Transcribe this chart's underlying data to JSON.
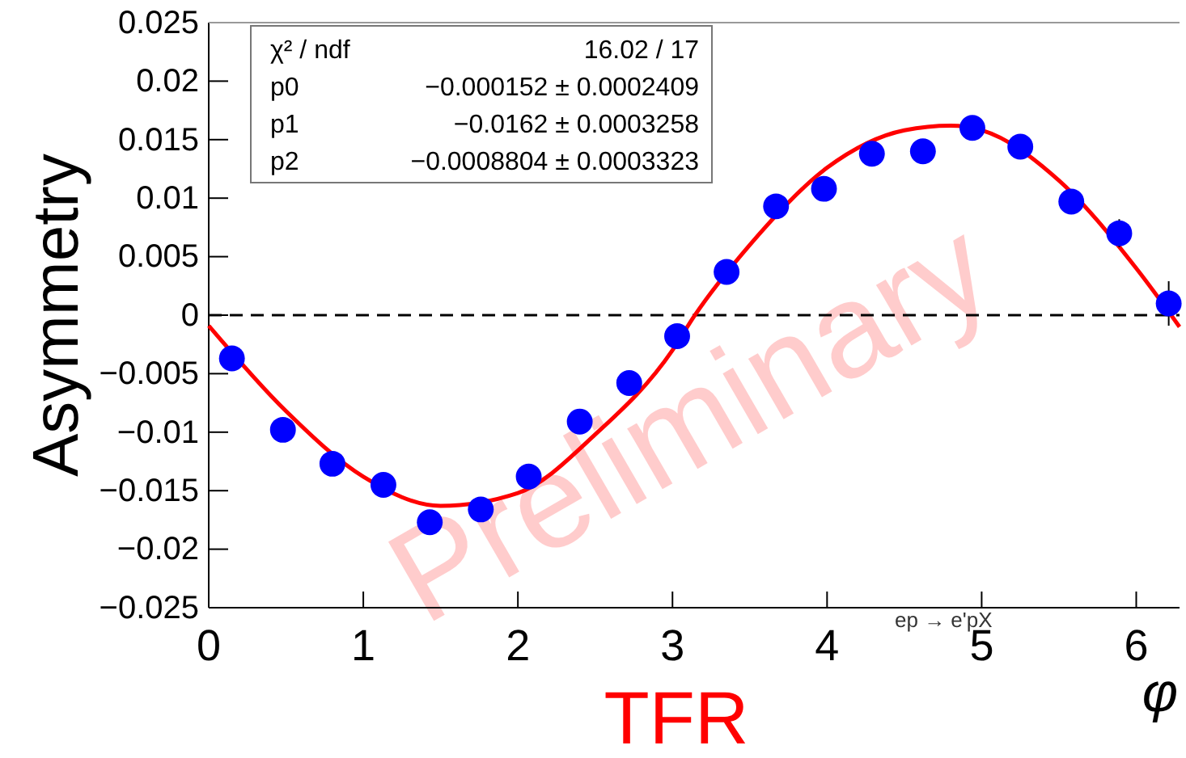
{
  "chart_data": {
    "type": "scatter",
    "xlabel": "TFR",
    "ylabel": "Asymmetry",
    "xlim": [
      0,
      6.28
    ],
    "xticks": [
      0,
      1,
      2,
      3,
      4,
      5,
      6
    ],
    "ylim": [
      -0.025,
      0.025
    ],
    "yticks": [
      {
        "value": -0.025,
        "label": "−0.025"
      },
      {
        "value": -0.02,
        "label": "−0.02"
      },
      {
        "value": -0.015,
        "label": "−0.015"
      },
      {
        "value": -0.01,
        "label": "−0.01"
      },
      {
        "value": -0.005,
        "label": "−0.005"
      },
      0,
      0.005,
      0.01,
      0.015,
      0.02,
      0.025
    ],
    "grid": false,
    "ref_lines": [
      {
        "axis": "y",
        "value": 0,
        "color": "#000000",
        "line_style": "dashed"
      }
    ],
    "series": [
      {
        "marker": "circle",
        "color": "#0000ff",
        "x": [
          0.15,
          0.48,
          0.8,
          1.13,
          1.43,
          1.76,
          2.07,
          2.4,
          2.72,
          3.03,
          3.35,
          3.67,
          3.98,
          4.29,
          4.62,
          4.94,
          5.25,
          5.58,
          5.89,
          6.21
        ],
        "values": [
          -0.0037,
          -0.0098,
          -0.0127,
          -0.0145,
          -0.0177,
          -0.0166,
          -0.0138,
          -0.0091,
          -0.0058,
          -0.0018,
          0.0037,
          0.0093,
          0.0108,
          0.0138,
          0.014,
          0.016,
          0.0144,
          0.0097,
          0.007,
          0.001
        ],
        "errors": [
          null,
          null,
          null,
          null,
          null,
          null,
          null,
          null,
          null,
          null,
          null,
          null,
          null,
          null,
          null,
          null,
          null,
          null,
          0.0012,
          0.0019
        ]
      },
      {
        "type": "line",
        "color": "#ff0000",
        "x": [
          0,
          0.5,
          1.0,
          1.5,
          2.0,
          2.5,
          3.0,
          3.14,
          3.5,
          4.0,
          4.5,
          4.8,
          5.0,
          5.5,
          6.0,
          6.28
        ],
        "values": [
          -0.0009,
          -0.0082,
          -0.0138,
          -0.0163,
          -0.0152,
          -0.0102,
          -0.003,
          -0.0001,
          0.006,
          0.0126,
          0.0158,
          0.0162,
          0.0158,
          0.0115,
          0.004,
          -0.001
        ]
      }
    ],
    "annotations": [
      "χ² / ndf",
      "16.02 / 17",
      "p0",
      "−0.000152 ± 0.0002409",
      "p1",
      "−0.0162 ± 0.0003258",
      "p2",
      "−0.0008804 ± 0.0003323",
      "Preliminary",
      "ep → e'pX",
      "φ"
    ]
  }
}
